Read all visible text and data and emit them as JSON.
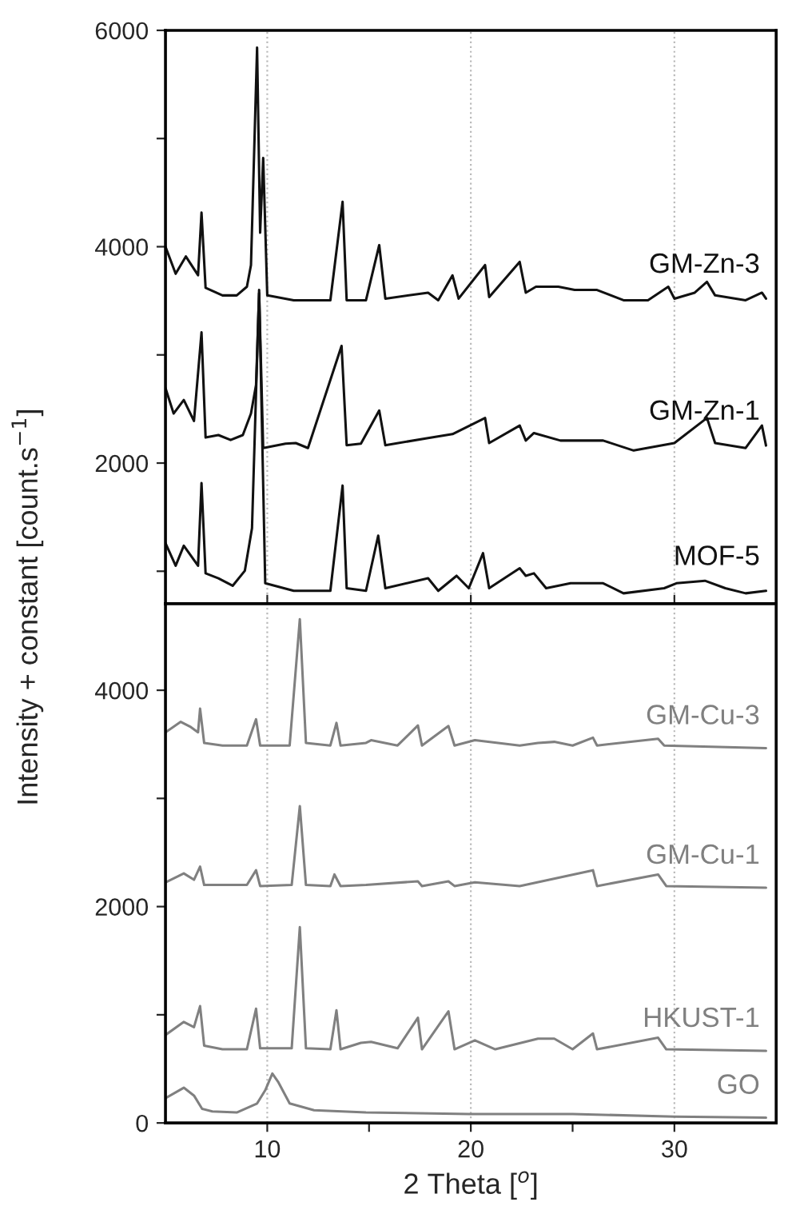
{
  "chart_data": [
    {
      "type": "line",
      "ylabel": "Intensity + constant [count.s$^{−1}$]",
      "xlim": [
        5,
        35
      ],
      "ylim": [
        700,
        6000
      ],
      "xticks": [
        10,
        20,
        30
      ],
      "yticks": [
        {
          "value": 1000,
          "label": null
        },
        2000,
        {
          "value": 3000,
          "label": null
        },
        4000,
        {
          "value": 5000,
          "label": null
        },
        6000
      ],
      "tick_labels": "y",
      "grid": "x",
      "legend": false,
      "line_style": "solid",
      "marker": "none",
      "series": [
        {
          "name": "GM-Zn-3",
          "color": "#111111",
          "x": [
            5.0,
            5.5,
            6.0,
            6.6,
            6.77,
            6.97,
            7.8,
            8.5,
            9.0,
            9.2,
            9.5,
            9.65,
            9.8,
            10.0,
            11.3,
            13.1,
            13.7,
            13.9,
            14.85,
            15.5,
            15.8,
            17.9,
            18.4,
            19.1,
            19.4,
            20.7,
            20.9,
            22.4,
            22.7,
            23.2,
            24.3,
            25.1,
            26.2,
            27.5,
            28.7,
            29.7,
            30.0,
            31.0,
            31.6,
            32.0,
            33.5,
            34.3,
            34.5
          ],
          "values": [
            4000,
            3750,
            3910,
            3736,
            4315,
            3620,
            3550,
            3550,
            3630,
            3830,
            5840,
            4130,
            4820,
            3550,
            3505,
            3505,
            4415,
            3505,
            3505,
            4015,
            3520,
            3575,
            3505,
            3735,
            3520,
            3830,
            3535,
            3860,
            3575,
            3630,
            3630,
            3600,
            3600,
            3505,
            3505,
            3630,
            3520,
            3575,
            3675,
            3550,
            3505,
            3575,
            3520
          ]
        },
        {
          "name": "GM-Zn-1",
          "color": "#111111",
          "x": [
            5.0,
            5.4,
            5.9,
            6.4,
            6.77,
            6.97,
            7.6,
            8.2,
            8.8,
            9.2,
            9.45,
            9.6,
            9.8,
            10.9,
            11.4,
            12.0,
            13.65,
            13.9,
            14.6,
            15.5,
            15.8,
            17.9,
            19.1,
            20.7,
            20.9,
            22.4,
            22.7,
            23.1,
            24.4,
            26.5,
            28.0,
            30.0,
            31.6,
            32.0,
            33.5,
            34.3,
            34.5
          ],
          "values": [
            2694,
            2458,
            2583,
            2389,
            3208,
            2236,
            2259,
            2213,
            2259,
            2458,
            2722,
            3570,
            2139,
            2180,
            2185,
            2139,
            3083,
            2165,
            2180,
            2486,
            2165,
            2231,
            2268,
            2417,
            2185,
            2347,
            2208,
            2278,
            2208,
            2208,
            2116,
            2185,
            2417,
            2185,
            2139,
            2347,
            2162
          ]
        },
        {
          "name": "MOF-5",
          "color": "#111111",
          "x": [
            5.0,
            5.5,
            5.9,
            6.6,
            6.77,
            6.97,
            7.6,
            8.3,
            8.9,
            9.25,
            9.6,
            9.9,
            11.3,
            13.1,
            13.7,
            13.9,
            14.85,
            15.45,
            15.8,
            17.9,
            18.4,
            19.3,
            19.9,
            20.6,
            20.9,
            22.4,
            22.7,
            23.1,
            23.7,
            24.9,
            26.5,
            27.5,
            29.5,
            30.1,
            31.5,
            32.5,
            33.5,
            34.5
          ],
          "values": [
            1259,
            1051,
            1236,
            1051,
            1815,
            981,
            935,
            866,
            1005,
            1398,
            3600,
            889,
            819,
            819,
            1792,
            843,
            819,
            1329,
            843,
            935,
            819,
            958,
            843,
            1167,
            843,
            1028,
            958,
            981,
            843,
            889,
            889,
            796,
            843,
            889,
            912,
            843,
            796,
            819
          ]
        }
      ]
    },
    {
      "type": "line",
      "xlabel": "2 Theta [$^{o}$]",
      "xlim": [
        5,
        35
      ],
      "ylim": [
        0,
        4800
      ],
      "xticks": [
        10,
        {
          "value": 15,
          "label": null
        },
        20,
        {
          "value": 25,
          "label": null
        },
        30
      ],
      "yticks": [
        0,
        {
          "value": 1000,
          "label": null
        },
        2000,
        {
          "value": 3000,
          "label": null
        },
        4000
      ],
      "grid": "x",
      "legend": false,
      "line_style": "solid",
      "marker": "none",
      "series": [
        {
          "name": "GM-Cu-3",
          "color": "#808080",
          "x": [
            5.0,
            5.75,
            6.25,
            6.6,
            6.7,
            6.9,
            7.8,
            9.0,
            9.45,
            9.65,
            11.1,
            11.6,
            11.9,
            13.1,
            13.4,
            13.6,
            14.85,
            15.1,
            16.4,
            17.4,
            17.6,
            18.9,
            19.2,
            20.2,
            22.4,
            23.3,
            24.1,
            25.0,
            26.0,
            26.2,
            29.2,
            29.5,
            34.5
          ],
          "values": [
            3611,
            3708,
            3659,
            3611,
            3830,
            3513,
            3489,
            3489,
            3732,
            3489,
            3489,
            4657,
            3513,
            3489,
            3698,
            3489,
            3513,
            3538,
            3489,
            3674,
            3489,
            3669,
            3489,
            3538,
            3489,
            3513,
            3523,
            3489,
            3562,
            3489,
            3552,
            3489,
            3465
          ]
        },
        {
          "name": "GM-Cu-1",
          "color": "#808080",
          "x": [
            5.0,
            5.9,
            6.4,
            6.7,
            6.9,
            7.8,
            9.0,
            9.45,
            9.65,
            11.2,
            11.6,
            11.9,
            13.1,
            13.3,
            13.6,
            14.85,
            17.4,
            17.6,
            18.9,
            19.2,
            20.2,
            22.4,
            26.0,
            26.2,
            29.2,
            29.6,
            34.5
          ],
          "values": [
            2224,
            2307,
            2248,
            2370,
            2200,
            2200,
            2200,
            2336,
            2190,
            2200,
            2929,
            2200,
            2190,
            2297,
            2190,
            2200,
            2234,
            2190,
            2234,
            2190,
            2224,
            2190,
            2336,
            2190,
            2297,
            2190,
            2175
          ]
        },
        {
          "name": "HKUST-1",
          "color": "#808080",
          "x": [
            5.0,
            5.9,
            6.4,
            6.7,
            6.9,
            7.8,
            9.0,
            9.45,
            9.65,
            11.2,
            11.6,
            11.9,
            13.1,
            13.4,
            13.6,
            14.6,
            15.1,
            16.4,
            17.4,
            17.6,
            18.9,
            19.2,
            20.2,
            21.2,
            23.3,
            24.1,
            25.0,
            26.0,
            26.2,
            29.2,
            29.6,
            34.5
          ],
          "values": [
            813,
            934,
            886,
            1080,
            715,
            681,
            681,
            1056,
            690,
            690,
            1810,
            690,
            681,
            1041,
            681,
            740,
            749,
            690,
            973,
            681,
            1032,
            681,
            764,
            681,
            779,
            779,
            681,
            827,
            681,
            788,
            681,
            667
          ]
        },
        {
          "name": "GO",
          "color": "#808080",
          "x": [
            5.0,
            5.9,
            6.4,
            6.8,
            7.3,
            8.5,
            9.5,
            9.9,
            10.25,
            10.55,
            11.1,
            12.3,
            14.85,
            19.9,
            25.0,
            30.0,
            34.5
          ],
          "values": [
            229,
            326,
            253,
            131,
            107,
            97,
            180,
            302,
            457,
            375,
            180,
            117,
            97,
            83,
            83,
            58,
            49
          ]
        }
      ]
    }
  ]
}
